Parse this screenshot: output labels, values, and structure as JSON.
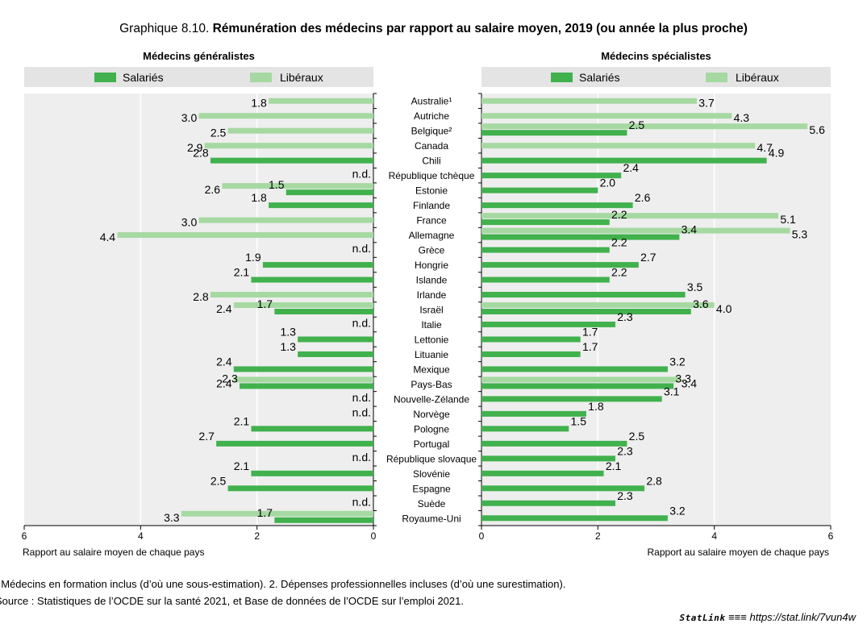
{
  "figure": {
    "prefix": "Graphique 8.10.",
    "title": "Rémunération des médecins par rapport au salaire moyen, 2019 (ou année la plus proche)"
  },
  "colors": {
    "salaried": "#41b14d",
    "liberal": "#a6d9a2",
    "panel_bg": "#eeeeee",
    "legend_bg": "#e4e4e4",
    "grid": "#ffffff"
  },
  "chart_data": [
    {
      "type": "bar",
      "orientation": "horizontal",
      "title": "Médecins généralistes",
      "xlabel": "Rapport au salaire moyen de chaque pays",
      "xlim": [
        0,
        6
      ],
      "x_reversed": true,
      "xticks": [
        "6",
        "4",
        "2",
        "0"
      ],
      "legend": [
        "Salariés",
        "Libéraux"
      ],
      "categories": [
        "Australie¹",
        "Autriche",
        "Belgique²",
        "Canada",
        "Chili",
        "République tchèque",
        "Estonie",
        "Finlande",
        "France",
        "Allemagne",
        "Grèce",
        "Hongrie",
        "Islande",
        "Irlande",
        "Israël",
        "Italie",
        "Lettonie",
        "Lituanie",
        "Mexique",
        "Pays-Bas",
        "Nouvelle-Zélande",
        "Norvège",
        "Pologne",
        "Portugal",
        "République slovaque",
        "Slovénie",
        "Espagne",
        "Suède",
        "Royaume-Uni"
      ],
      "series": [
        {
          "name": "Salariés",
          "values": [
            null,
            null,
            null,
            null,
            2.8,
            "n.d.",
            1.5,
            1.8,
            null,
            null,
            "n.d.",
            1.9,
            2.1,
            null,
            1.7,
            "n.d.",
            1.3,
            1.3,
            2.4,
            2.3,
            "n.d.",
            "n.d.",
            2.1,
            2.7,
            "n.d.",
            2.1,
            2.5,
            "n.d.",
            1.7
          ]
        },
        {
          "name": "Libéraux",
          "values": [
            1.8,
            3.0,
            2.5,
            2.9,
            null,
            null,
            2.6,
            null,
            3.0,
            4.4,
            null,
            null,
            null,
            2.8,
            2.4,
            null,
            null,
            null,
            null,
            2.4,
            null,
            null,
            null,
            null,
            null,
            null,
            null,
            null,
            3.3
          ]
        }
      ]
    },
    {
      "type": "bar",
      "orientation": "horizontal",
      "title": "Médecins spécialistes",
      "xlabel": "Rapport au salaire moyen de chaque pays",
      "xlim": [
        0,
        6
      ],
      "xticks": [
        "0",
        "2",
        "4",
        "6"
      ],
      "legend": [
        "Salariés",
        "Libéraux"
      ],
      "categories": [
        "Australie¹",
        "Autriche",
        "Belgique²",
        "Canada",
        "Chili",
        "République tchèque",
        "Estonie",
        "Finlande",
        "France",
        "Allemagne",
        "Grèce",
        "Hongrie",
        "Islande",
        "Irlande",
        "Israël",
        "Italie",
        "Lettonie",
        "Lituanie",
        "Mexique",
        "Pays-Bas",
        "Nouvelle-Zélande",
        "Norvège",
        "Pologne",
        "Portugal",
        "République slovaque",
        "Slovénie",
        "Espagne",
        "Suède",
        "Royaume-Uni"
      ],
      "series": [
        {
          "name": "Salariés",
          "values": [
            null,
            null,
            2.5,
            null,
            4.9,
            2.4,
            2.0,
            2.6,
            2.2,
            3.4,
            2.2,
            2.7,
            2.2,
            3.5,
            3.6,
            2.3,
            1.7,
            1.7,
            3.2,
            3.3,
            3.1,
            1.8,
            1.5,
            2.5,
            2.3,
            2.1,
            2.8,
            2.3,
            3.2
          ]
        },
        {
          "name": "Libéraux",
          "values": [
            3.7,
            4.3,
            5.6,
            4.7,
            null,
            null,
            null,
            null,
            5.1,
            5.3,
            null,
            null,
            null,
            null,
            4.0,
            null,
            null,
            null,
            null,
            3.4,
            null,
            null,
            null,
            null,
            null,
            null,
            null,
            null,
            null
          ]
        }
      ]
    }
  ],
  "notes": [
    ". Médecins en formation inclus (d’où une sous-estimation). 2. Dépenses professionnelles incluses (d’où une surestimation).",
    "Source : Statistiques de l’OCDE sur la santé 2021, et Base de données de l’OCDE sur l’emploi 2021."
  ],
  "statlink": {
    "brand": "StatLink",
    "url": "https://stat.link/7vun4w"
  }
}
